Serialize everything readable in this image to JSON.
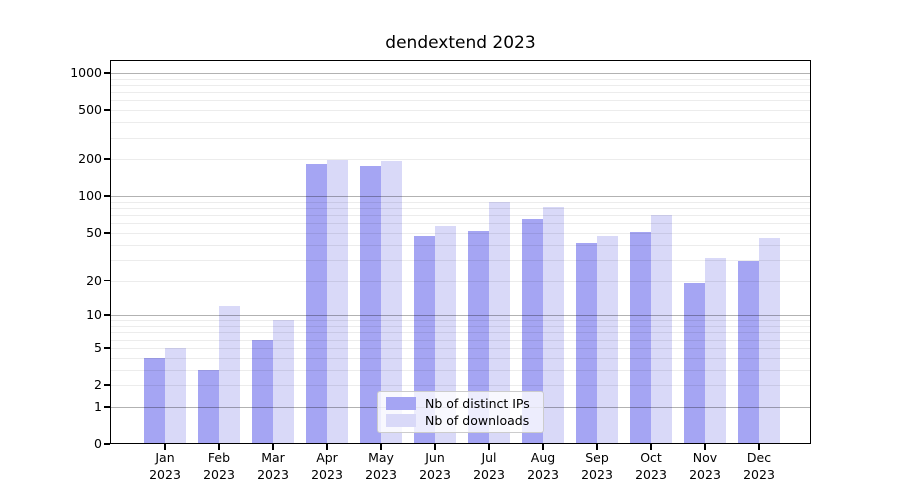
{
  "title": "dendextend 2023",
  "chart_data": {
    "type": "bar",
    "title": "dendextend 2023",
    "categories": [
      "Jan",
      "Feb",
      "Mar",
      "Apr",
      "May",
      "Jun",
      "Jul",
      "Aug",
      "Sep",
      "Oct",
      "Nov",
      "Dec"
    ],
    "year_label": "2023",
    "series": [
      {
        "name": "Nb of distinct IPs",
        "color": "#a5a5f3",
        "values": [
          4,
          3,
          6,
          182,
          176,
          47,
          52,
          65,
          41,
          51,
          19,
          29
        ]
      },
      {
        "name": "Nb of downloads",
        "color": "#d9d9f8",
        "values": [
          5,
          12,
          9,
          197,
          193,
          57,
          90,
          81,
          47,
          70,
          31,
          45
        ]
      }
    ],
    "yscale": "log1p",
    "ytick_values": [
      1000,
      500,
      200,
      100,
      50,
      20,
      10,
      5,
      2,
      1,
      0
    ],
    "ytick_labels": [
      "1000",
      "500",
      "200",
      "100",
      "50",
      "20",
      "10",
      "5",
      "2",
      "1",
      "0"
    ],
    "ylim": [
      0,
      1275
    ],
    "xlabel": "",
    "ylabel": "",
    "grid": "horizontal",
    "legend_position": "inside-bottom-center",
    "colors": {
      "major_grid": "#b3b3b3",
      "minor_grid": "#ebebeb",
      "axis": "#000000",
      "background": "#ffffff"
    }
  }
}
